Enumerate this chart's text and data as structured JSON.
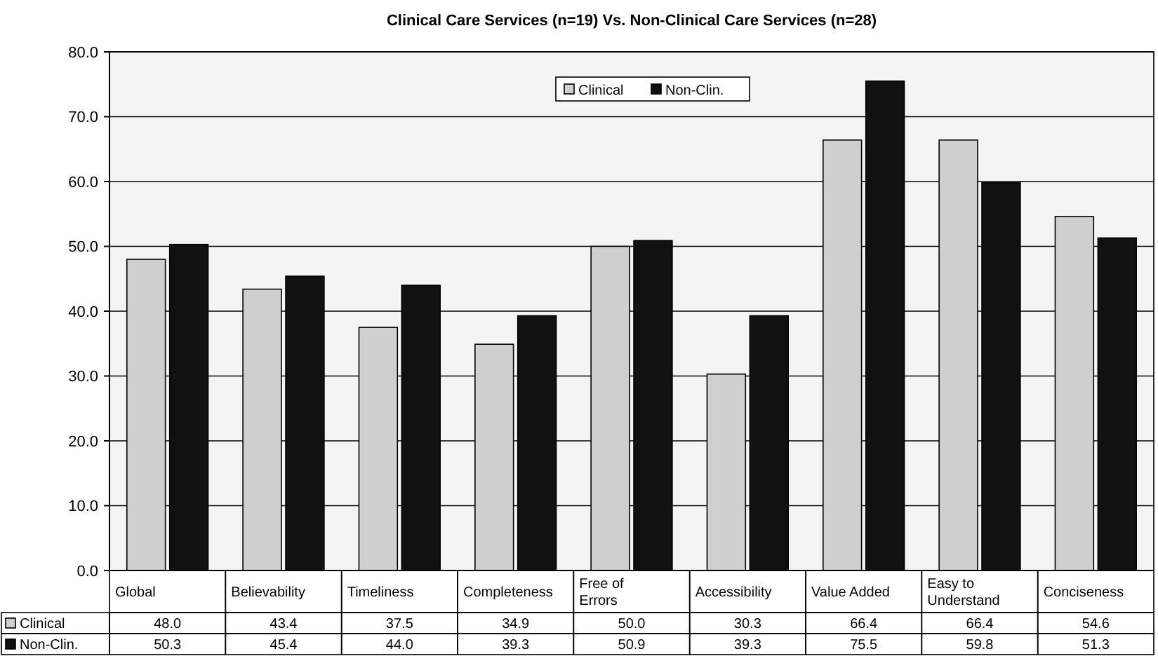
{
  "chart_data": {
    "type": "bar",
    "title": "Clinical Care Services (n=19) Vs. Non-Clinical Care Services (n=28)",
    "categories": [
      "Global",
      "Believability",
      "Timeliness",
      "Completeness",
      "Free of Errors",
      "Accessibility",
      "Value Added",
      "Easy to Understand",
      "Conciseness"
    ],
    "series": [
      {
        "name": "Clinical",
        "color": "#cfcfcf",
        "values": [
          48.0,
          43.4,
          37.5,
          34.9,
          50.0,
          30.3,
          66.4,
          66.4,
          54.6
        ],
        "value_labels": [
          "48.0",
          "43.4",
          "37.5",
          "34.9",
          "50.0",
          "30.3",
          "66.4",
          "66.4",
          "54.6"
        ]
      },
      {
        "name": "Non-Clin.",
        "color": "#111111",
        "values": [
          50.3,
          45.4,
          44.0,
          39.3,
          50.9,
          39.3,
          75.5,
          59.8,
          51.3
        ],
        "value_labels": [
          "50.3",
          "45.4",
          "44.0",
          "39.3",
          "50.9",
          "39.3",
          "75.5",
          "59.8",
          "51.3"
        ]
      }
    ],
    "ylim": [
      0,
      80
    ],
    "yticks": [
      {
        "value": 0,
        "label": "0.0"
      },
      {
        "value": 10,
        "label": "10.0"
      },
      {
        "value": 20,
        "label": "20.0"
      },
      {
        "value": 30,
        "label": "30.0"
      },
      {
        "value": 40,
        "label": "40.0"
      },
      {
        "value": 50,
        "label": "50.0"
      },
      {
        "value": 60,
        "label": "60.0"
      },
      {
        "value": 70,
        "label": "70.0"
      },
      {
        "value": 80,
        "label": "80.0"
      }
    ],
    "grid": "y",
    "legend": "top"
  }
}
